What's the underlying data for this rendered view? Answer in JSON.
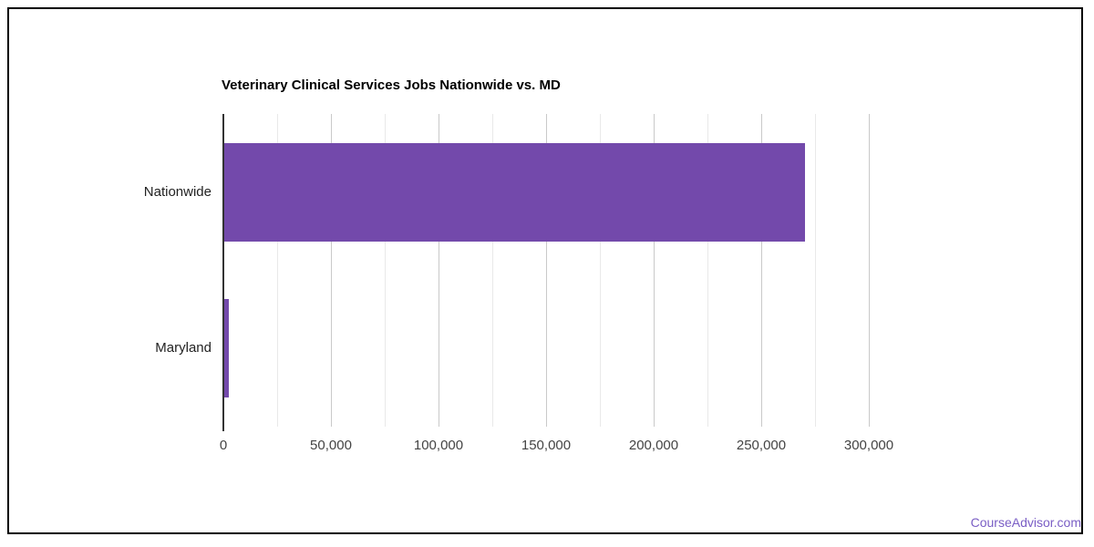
{
  "page": {
    "background": "#ffffff",
    "border_color": "#000000"
  },
  "watermark": {
    "label": "CourseAdvisor.com",
    "color": "#7a5ec5"
  },
  "chart_data": {
    "type": "bar",
    "orientation": "horizontal",
    "title": "Veterinary Clinical Services Jobs Nationwide vs. MD",
    "categories": [
      "Nationwide",
      "Maryland"
    ],
    "values": [
      270000,
      2100
    ],
    "xlim": [
      0,
      300000
    ],
    "x_tick_step": 50000,
    "x_minor_grid_step": 25000,
    "x_tick_labels": [
      "0",
      "50,000",
      "100,000",
      "150,000",
      "200,000",
      "250,000",
      "300,000"
    ],
    "xlabel": "",
    "ylabel": "",
    "legend_position": "none",
    "grid": "vertical",
    "colors": {
      "bar": "#7349ab",
      "title_text": "#000000",
      "category_text": "#222222",
      "tick_text": "#444444",
      "grid_major": "#c9c9c9",
      "grid_minor": "#e9e9e9",
      "axis_line": "#333333"
    }
  }
}
